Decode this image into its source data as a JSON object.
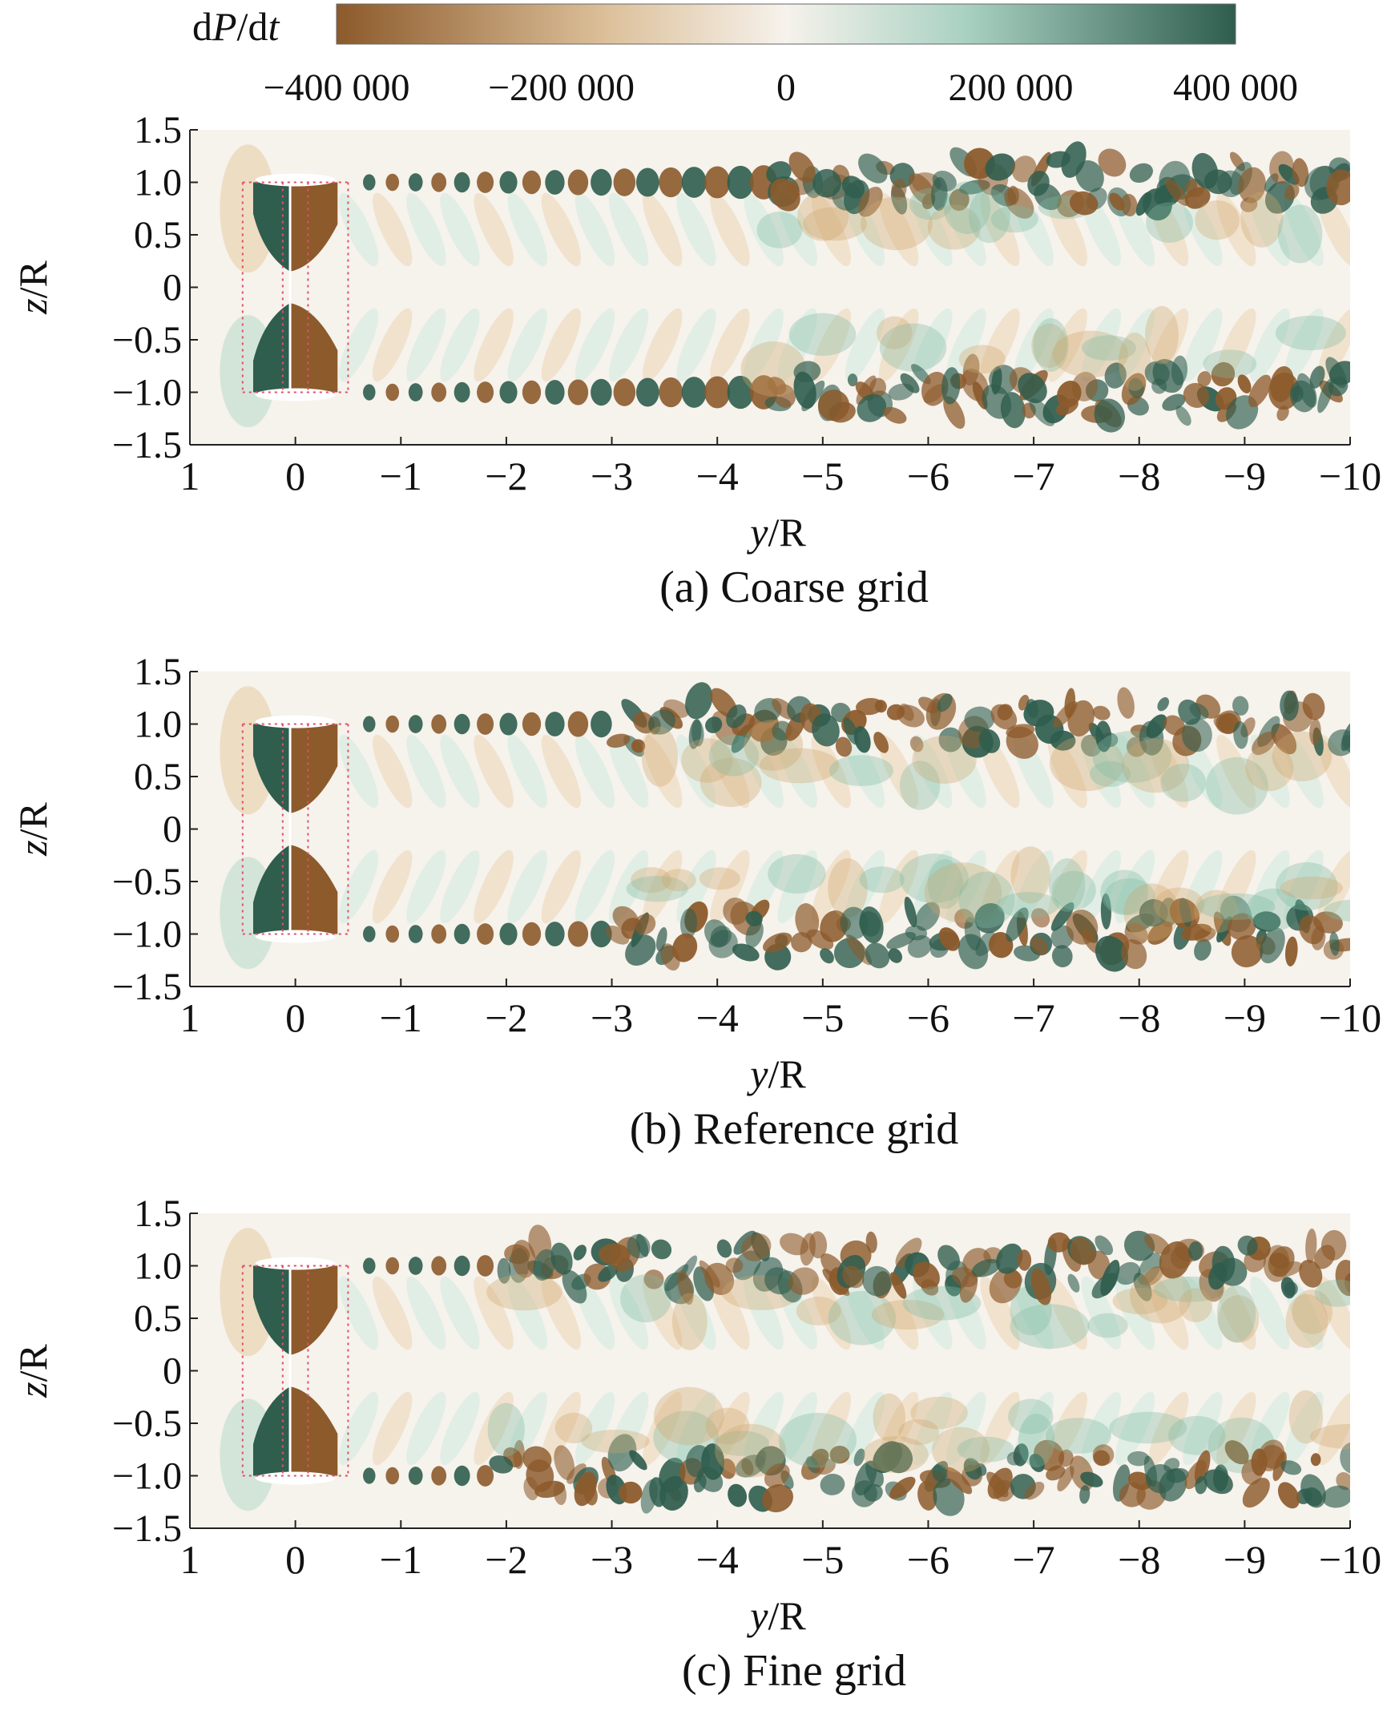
{
  "colorbar": {
    "label_d": "d",
    "label_P": "P",
    "label_slash": "/d",
    "label_t": "t",
    "range": [
      -400000,
      400000
    ],
    "ticks": [
      {
        "value": -400000,
        "label": "−400 000"
      },
      {
        "value": -200000,
        "label": "−200 000"
      },
      {
        "value": 0,
        "label": "0"
      },
      {
        "value": 200000,
        "label": "200 000"
      },
      {
        "value": 400000,
        "label": "400 000"
      }
    ],
    "colors": {
      "negative": "#8c5a2b",
      "neg_mid": "#cfa56e",
      "neutral": "#f6f2ec",
      "pos_mid": "#7fb9a4",
      "positive": "#2f5d4e"
    }
  },
  "chart_data": [
    {
      "type": "heatmap",
      "title": "(a) Coarse grid",
      "xlabel_var": "y",
      "xlabel_unit": "/R",
      "ylabel_var": "z",
      "ylabel_unit": "/R",
      "xlim": [
        1,
        -10
      ],
      "ylim": [
        -1.5,
        1.5
      ],
      "xticks": [
        {
          "value": 1,
          "label": "1"
        },
        {
          "value": 0,
          "label": "0"
        },
        {
          "value": -1,
          "label": "−1"
        },
        {
          "value": -2,
          "label": "−2"
        },
        {
          "value": -3,
          "label": "−3"
        },
        {
          "value": -4,
          "label": "−4"
        },
        {
          "value": -5,
          "label": "−5"
        },
        {
          "value": -6,
          "label": "−6"
        },
        {
          "value": -7,
          "label": "−7"
        },
        {
          "value": -8,
          "label": "−8"
        },
        {
          "value": -9,
          "label": "−9"
        },
        {
          "value": -10,
          "label": "−10"
        }
      ],
      "yticks": [
        {
          "value": 1.5,
          "label": "1.5"
        },
        {
          "value": 1.0,
          "label": "1.0"
        },
        {
          "value": 0.5,
          "label": "0.5"
        },
        {
          "value": 0,
          "label": "0"
        },
        {
          "value": -0.5,
          "label": "−0.5"
        },
        {
          "value": -1.0,
          "label": "−1.0"
        },
        {
          "value": -1.5,
          "label": "−1.5"
        }
      ],
      "rotor_region_y": [
        0.5,
        -0.5
      ],
      "coherent_wake_until_y": -4.5,
      "tip_vortex_z": [
        1.0,
        -1.0
      ]
    },
    {
      "type": "heatmap",
      "title": "(b) Reference grid",
      "xlabel_var": "y",
      "xlabel_unit": "/R",
      "ylabel_var": "z",
      "ylabel_unit": "/R",
      "xlim": [
        1,
        -10
      ],
      "ylim": [
        -1.5,
        1.5
      ],
      "xticks": [
        {
          "value": 1,
          "label": "1"
        },
        {
          "value": 0,
          "label": "0"
        },
        {
          "value": -1,
          "label": "−1"
        },
        {
          "value": -2,
          "label": "−2"
        },
        {
          "value": -3,
          "label": "−3"
        },
        {
          "value": -4,
          "label": "−4"
        },
        {
          "value": -5,
          "label": "−5"
        },
        {
          "value": -6,
          "label": "−6"
        },
        {
          "value": -7,
          "label": "−7"
        },
        {
          "value": -8,
          "label": "−8"
        },
        {
          "value": -9,
          "label": "−9"
        },
        {
          "value": -10,
          "label": "−10"
        }
      ],
      "yticks": [
        {
          "value": 1.5,
          "label": "1.5"
        },
        {
          "value": 1.0,
          "label": "1.0"
        },
        {
          "value": 0.5,
          "label": "0.5"
        },
        {
          "value": 0,
          "label": "0"
        },
        {
          "value": -0.5,
          "label": "−0.5"
        },
        {
          "value": -1.0,
          "label": "−1.0"
        },
        {
          "value": -1.5,
          "label": "−1.5"
        }
      ],
      "rotor_region_y": [
        0.5,
        -0.5
      ],
      "coherent_wake_until_y": -3.0,
      "tip_vortex_z": [
        1.0,
        -1.0
      ]
    },
    {
      "type": "heatmap",
      "title": "(c) Fine grid",
      "xlabel_var": "y",
      "xlabel_unit": "/R",
      "ylabel_var": "z",
      "ylabel_unit": "/R",
      "xlim": [
        1,
        -10
      ],
      "ylim": [
        -1.5,
        1.5
      ],
      "xticks": [
        {
          "value": 1,
          "label": "1"
        },
        {
          "value": 0,
          "label": "0"
        },
        {
          "value": -1,
          "label": "−1"
        },
        {
          "value": -2,
          "label": "−2"
        },
        {
          "value": -3,
          "label": "−3"
        },
        {
          "value": -4,
          "label": "−4"
        },
        {
          "value": -5,
          "label": "−5"
        },
        {
          "value": -6,
          "label": "−6"
        },
        {
          "value": -7,
          "label": "−7"
        },
        {
          "value": -8,
          "label": "−8"
        },
        {
          "value": -9,
          "label": "−9"
        },
        {
          "value": -10,
          "label": "−10"
        }
      ],
      "yticks": [
        {
          "value": 1.5,
          "label": "1.5"
        },
        {
          "value": 1.0,
          "label": "1.0"
        },
        {
          "value": 0.5,
          "label": "0.5"
        },
        {
          "value": 0,
          "label": "0"
        },
        {
          "value": -0.5,
          "label": "−0.5"
        },
        {
          "value": -1.0,
          "label": "−1.0"
        },
        {
          "value": -1.5,
          "label": "−1.5"
        }
      ],
      "rotor_region_y": [
        0.5,
        -0.5
      ],
      "coherent_wake_until_y": -2.0,
      "tip_vortex_z": [
        1.0,
        -1.0
      ]
    }
  ]
}
